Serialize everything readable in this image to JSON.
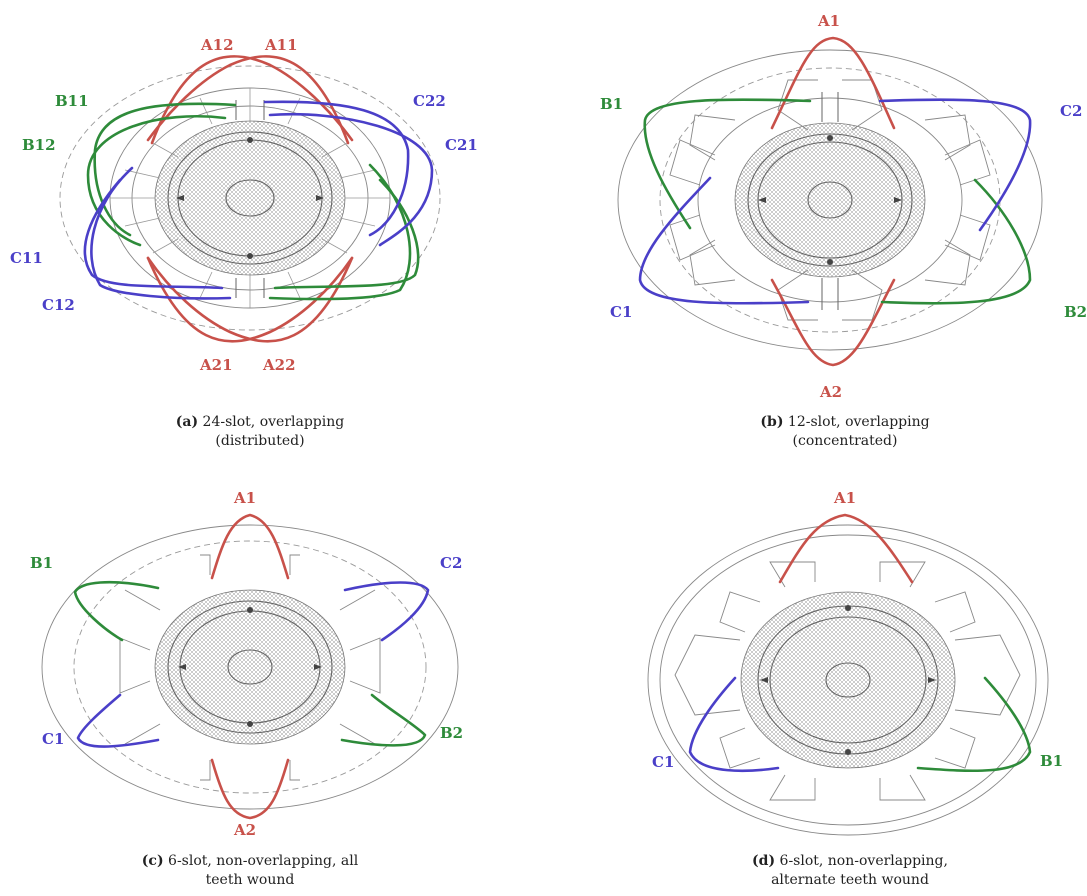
{
  "colors": {
    "A": "#c8514a",
    "B": "#2e8b3a",
    "C": "#4a3fc8"
  },
  "panels": [
    {
      "caption_letter": "(a)",
      "caption_rest": "24-slot, overlapping",
      "caption_line2": "(distributed)",
      "labels": {
        "a12": "A12",
        "a11": "A11",
        "b11": "B11",
        "b12": "B12",
        "c22": "C22",
        "c21": "C21",
        "c11": "C11",
        "c12": "C12",
        "a21": "A21",
        "a22": "A22"
      }
    },
    {
      "caption_letter": "(b)",
      "caption_rest": "12-slot, overlapping",
      "caption_line2": "(concentrated)",
      "labels": {
        "a1": "A1",
        "b1": "B1",
        "c2": "C2",
        "c1": "C1",
        "b2": "B2",
        "a2": "A2"
      }
    },
    {
      "caption_letter": "(c)",
      "caption_rest": "6-slot, non-overlapping, all",
      "caption_line2": "teeth wound",
      "labels": {
        "a1": "A1",
        "b1": "B1",
        "c2": "C2",
        "c1": "C1",
        "b2": "B2",
        "a2": "A2"
      }
    },
    {
      "caption_letter": "(d)",
      "caption_rest": "6-slot, non-overlapping,",
      "caption_line2": "alternate teeth wound",
      "labels": {
        "a1": "A1",
        "c1": "C1",
        "b1": "B1"
      }
    }
  ]
}
